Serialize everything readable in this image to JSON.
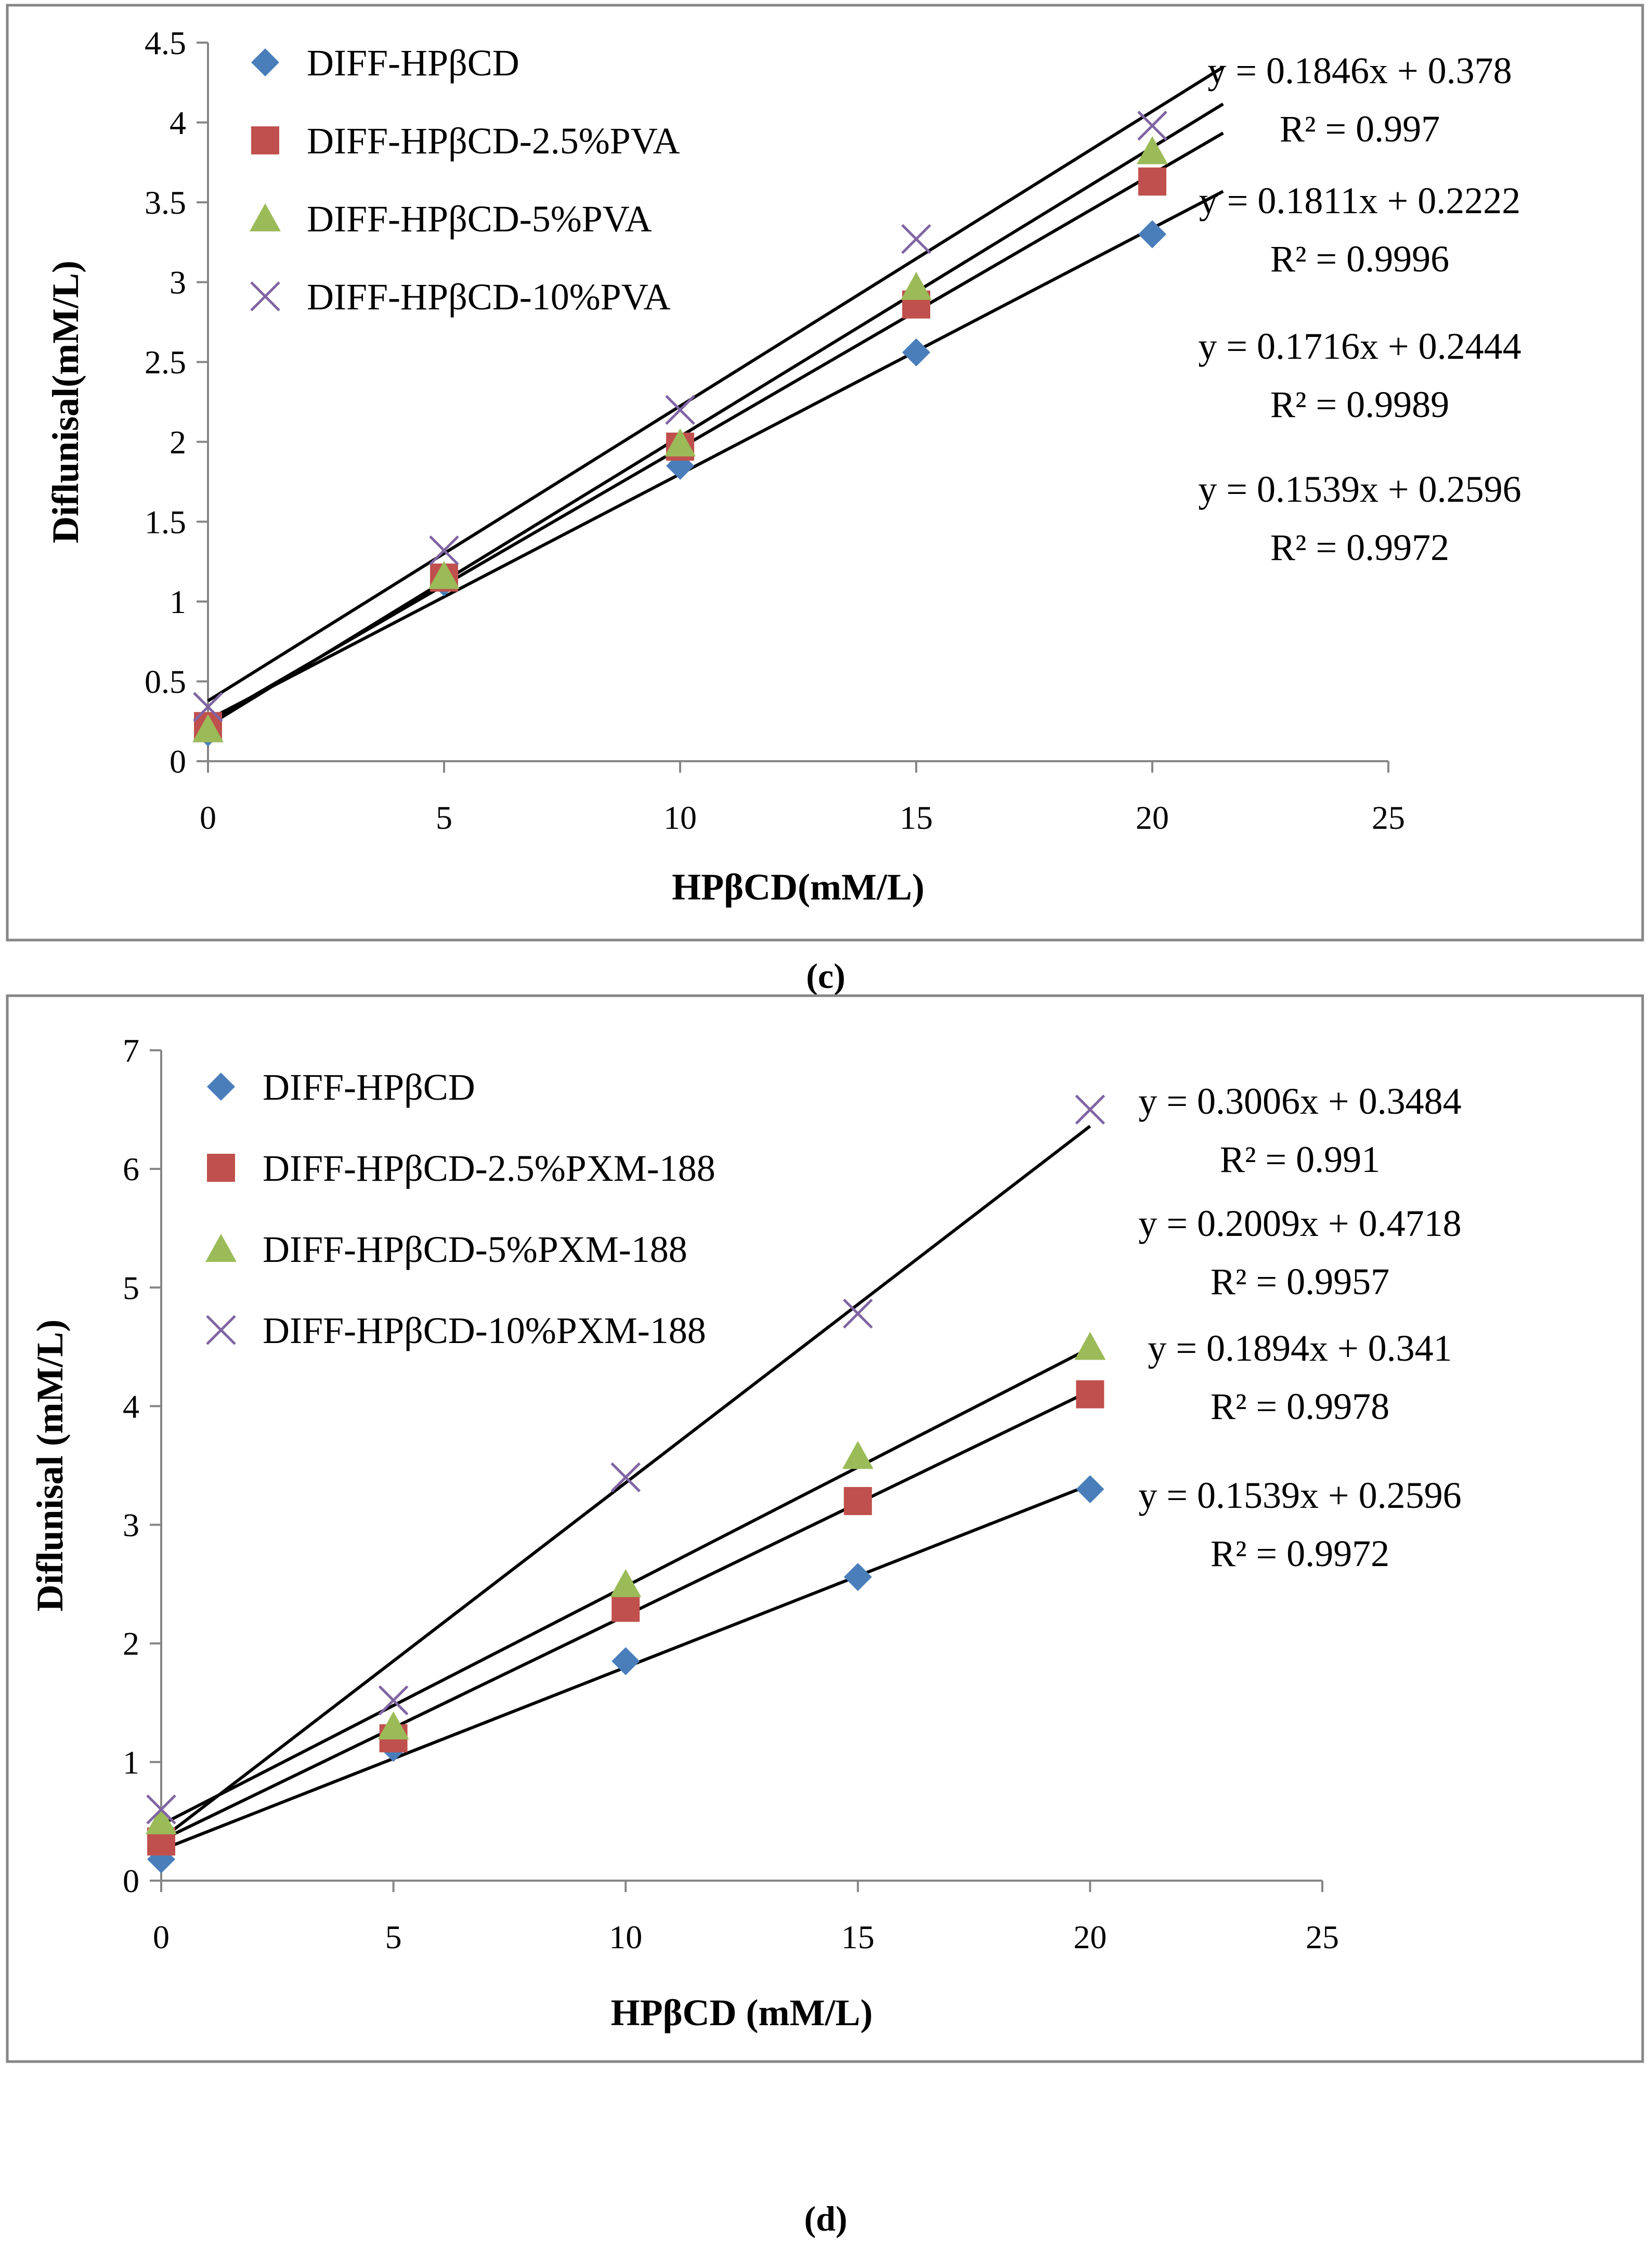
{
  "colors": {
    "DIFF-HPβCD": "#4a7ebb",
    "red_series": "#c0504d",
    "green_series": "#9bbb59",
    "purple_series": "#8064a2",
    "fit_line": "#000000"
  },
  "chart_data": [
    {
      "id": "c",
      "panel_label": "(c)",
      "type": "scatter",
      "xlabel": "HPβCD(mM/L)",
      "ylabel": "Diflunisal(mM/L)",
      "xlim": [
        0,
        25
      ],
      "ylim": [
        0,
        4.5
      ],
      "x_ticks": [
        "0",
        "5",
        "10",
        "15",
        "20",
        "25"
      ],
      "y_ticks": [
        "0",
        "0.5",
        "1",
        "1.5",
        "2",
        "2.5",
        "3",
        "3.5",
        "4",
        "4.5"
      ],
      "grid": false,
      "legend_position": "top-left",
      "series": [
        {
          "name": "DIFF-HPβCD",
          "marker": "diamond",
          "color": "#4a7ebb",
          "x": [
            0,
            5,
            10,
            15,
            20
          ],
          "y": [
            0.18,
            1.12,
            1.85,
            2.56,
            3.3
          ],
          "fit": {
            "slope": 0.1539,
            "intercept": 0.2596
          }
        },
        {
          "name": "DIFF-HPβCD-2.5%PVA",
          "marker": "square",
          "color": "#c0504d",
          "x": [
            0,
            5,
            10,
            15,
            20
          ],
          "y": [
            0.22,
            1.15,
            1.97,
            2.86,
            3.63
          ],
          "fit": {
            "slope": 0.1716,
            "intercept": 0.2444
          }
        },
        {
          "name": "DIFF-HPβCD-5%PVA",
          "marker": "triangle",
          "color": "#9bbb59",
          "x": [
            0,
            5,
            10,
            15,
            20
          ],
          "y": [
            0.2,
            1.16,
            1.99,
            2.97,
            3.82
          ],
          "fit": {
            "slope": 0.1811,
            "intercept": 0.2222
          }
        },
        {
          "name": "DIFF-HPβCD-10%PVA",
          "marker": "x",
          "color": "#8064a2",
          "x": [
            0,
            5,
            10,
            15,
            20
          ],
          "y": [
            0.34,
            1.32,
            2.2,
            3.27,
            3.98
          ],
          "fit": {
            "slope": 0.1846,
            "intercept": 0.378
          }
        }
      ],
      "annotations": [
        {
          "eq": "y = 0.1846x + 0.378",
          "r2": "R² = 0.997"
        },
        {
          "eq": "y = 0.1811x + 0.2222",
          "r2": "R² = 0.9996"
        },
        {
          "eq": "y = 0.1716x + 0.2444",
          "r2": "R² = 0.9989"
        },
        {
          "eq": "y = 0.1539x + 0.2596",
          "r2": "R² = 0.9972"
        }
      ]
    },
    {
      "id": "d",
      "panel_label": "(d)",
      "type": "scatter",
      "xlabel": "HPβCD (mM/L)",
      "ylabel": "Diflunisal (mM/L)",
      "xlim": [
        0,
        25
      ],
      "ylim": [
        0,
        7
      ],
      "x_ticks": [
        "0",
        "5",
        "10",
        "15",
        "20",
        "25"
      ],
      "y_ticks": [
        "0",
        "1",
        "2",
        "3",
        "4",
        "5",
        "6",
        "7"
      ],
      "grid": false,
      "legend_position": "top-left",
      "series": [
        {
          "name": "DIFF-HPβCD",
          "marker": "diamond",
          "color": "#4a7ebb",
          "x": [
            0,
            5,
            10,
            15,
            20
          ],
          "y": [
            0.18,
            1.12,
            1.85,
            2.56,
            3.3
          ],
          "fit": {
            "slope": 0.1539,
            "intercept": 0.2596
          }
        },
        {
          "name": "DIFF-HPβCD-2.5%PXM-188",
          "marker": "square",
          "color": "#c0504d",
          "x": [
            0,
            5,
            10,
            15,
            20
          ],
          "y": [
            0.33,
            1.2,
            2.3,
            3.2,
            4.1
          ],
          "fit": {
            "slope": 0.1894,
            "intercept": 0.341
          }
        },
        {
          "name": "DIFF-HPβCD-5%PXM-188",
          "marker": "triangle",
          "color": "#9bbb59",
          "x": [
            0,
            5,
            10,
            15,
            20
          ],
          "y": [
            0.5,
            1.3,
            2.5,
            3.58,
            4.5
          ],
          "fit": {
            "slope": 0.2009,
            "intercept": 0.4718
          }
        },
        {
          "name": "DIFF-HPβCD-10%PXM-188",
          "marker": "x",
          "color": "#8064a2",
          "x": [
            0,
            5,
            10,
            15,
            20
          ],
          "y": [
            0.6,
            1.52,
            3.4,
            4.78,
            6.5
          ],
          "fit": {
            "slope": 0.3006,
            "intercept": 0.3484
          }
        }
      ],
      "annotations": [
        {
          "eq": "y = 0.3006x + 0.3484",
          "r2": "R² = 0.991"
        },
        {
          "eq": "y = 0.2009x + 0.4718",
          "r2": "R² = 0.9957"
        },
        {
          "eq": "y = 0.1894x + 0.341",
          "r2": "R² = 0.9978"
        },
        {
          "eq": "y = 0.1539x + 0.2596",
          "r2": "R² = 0.9972"
        }
      ]
    }
  ]
}
